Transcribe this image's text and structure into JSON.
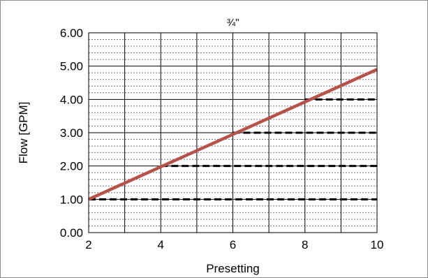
{
  "chart_data": {
    "type": "line",
    "title": "¾\"",
    "xlabel": "Presetting",
    "ylabel": "Flow [GPM]",
    "xlim": [
      2,
      10
    ],
    "ylim": [
      0,
      6
    ],
    "x_ticks": [
      2,
      4,
      6,
      8,
      10
    ],
    "y_ticks": [
      "0.00",
      "1.00",
      "2.00",
      "3.00",
      "4.00",
      "5.00",
      "6.00"
    ],
    "x_grid_step": 1,
    "y_minor_step": 0.2,
    "grid": true,
    "series": [
      {
        "x": [
          2,
          10
        ],
        "y": [
          1.0,
          4.9
        ],
        "color": "#b5524b"
      }
    ],
    "reference_lines": [
      {
        "y": 1.0,
        "x_from": 2,
        "x_to": 10,
        "style": "dashed",
        "color": "#000000"
      },
      {
        "y": 2.0,
        "x_from": 4,
        "x_to": 10,
        "style": "dashed",
        "color": "#000000"
      },
      {
        "y": 3.0,
        "x_from": 6,
        "x_to": 10,
        "style": "dashed",
        "color": "#000000"
      },
      {
        "y": 4.0,
        "x_from": 8,
        "x_to": 10,
        "style": "dashed",
        "color": "#000000"
      }
    ]
  }
}
